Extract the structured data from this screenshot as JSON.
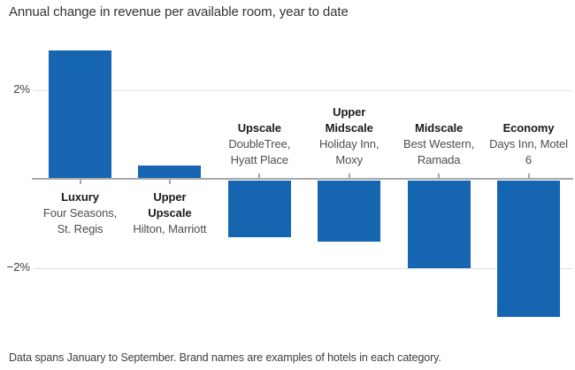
{
  "header": {
    "title": "Annual change in revenue per available room, year to date"
  },
  "footer": {
    "note": "Data spans January to September. Brand names are examples of hotels in each category."
  },
  "chart_data": {
    "type": "bar",
    "title": "Annual change in revenue per available room, year to date",
    "note": "Data spans January to September. Brand names are examples of hotels in each category.",
    "unit": "percent",
    "bar_color": "#1565b0",
    "grid": "horizontal lines at 2% and -2%, zero baseline emphasized",
    "ylim": [
      -3.5,
      3.2
    ],
    "yticks": [
      {
        "label": "2%",
        "value": 2
      },
      {
        "label": "−2%",
        "value": -2
      }
    ],
    "categories": [
      {
        "name": "Luxury",
        "name_lines": [
          "Luxury"
        ],
        "examples": "Four Seasons, St. Regis",
        "example_lines": [
          "Four Seasons,",
          "St. Regis"
        ],
        "value": 2.9
      },
      {
        "name": "Upper Upscale",
        "name_lines": [
          "Upper",
          "Upscale"
        ],
        "examples": "Hilton, Marriott",
        "example_lines": [
          "Hilton, Marriott"
        ],
        "value": 0.3
      },
      {
        "name": "Upscale",
        "name_lines": [
          "Upscale"
        ],
        "examples": "DoubleTree, Hyatt Place",
        "example_lines": [
          "DoubleTree,",
          "Hyatt Place"
        ],
        "value": -1.3
      },
      {
        "name": "Upper Midscale",
        "name_lines": [
          "Upper",
          "Midscale"
        ],
        "examples": "Holiday Inn, Moxy",
        "example_lines": [
          "Holiday Inn,",
          "Moxy"
        ],
        "value": -1.4
      },
      {
        "name": "Midscale",
        "name_lines": [
          "Midscale"
        ],
        "examples": "Best Western, Ramada",
        "example_lines": [
          "Best Western,",
          "Ramada"
        ],
        "value": -2.0
      },
      {
        "name": "Economy",
        "name_lines": [
          "Economy"
        ],
        "examples": "Days Inn, Motel 6",
        "example_lines": [
          "Days Inn, Motel",
          "6"
        ],
        "value": -3.1
      }
    ]
  }
}
